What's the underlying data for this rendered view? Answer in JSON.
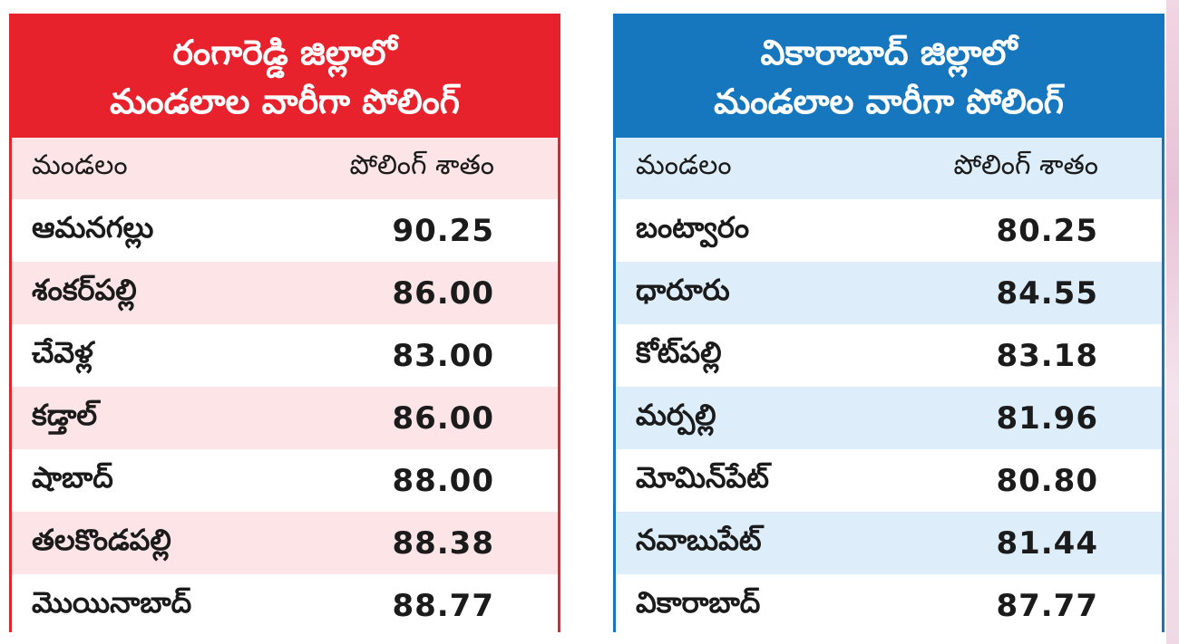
{
  "left_panel": {
    "title_line1": "రంగారెడ్డి జిల్లాలో",
    "title_line2": "మండలాల వారీగా పోలింగ్",
    "col_mandal": "మండలం",
    "col_percent": "పోలింగ్ శాతం",
    "rows": [
      {
        "name": "ఆమనగల్లు",
        "value": "90.25"
      },
      {
        "name": "శంకర్‌పల్లి",
        "value": "86.00"
      },
      {
        "name": "చేవెళ్ల",
        "value": "83.00"
      },
      {
        "name": "కడ్తాల్",
        "value": "86.00"
      },
      {
        "name": "షాబాద్",
        "value": "88.00"
      },
      {
        "name": "తలకొండపల్లి",
        "value": "88.38"
      },
      {
        "name": "మొయినాబాద్",
        "value": "88.77"
      }
    ],
    "color": "#e8222d"
  },
  "right_panel": {
    "title_line1": "వికారాబాద్ జిల్లాలో",
    "title_line2": "మండలాల వారీగా పోలింగ్",
    "col_mandal": "మండలం",
    "col_percent": "పోలింగ్ శాతం",
    "rows": [
      {
        "name": "బంట్వారం",
        "value": "80.25"
      },
      {
        "name": "ధారూరు",
        "value": "84.55"
      },
      {
        "name": "కోట్‌పల్లి",
        "value": "83.18"
      },
      {
        "name": "మర్పల్లి",
        "value": "81.96"
      },
      {
        "name": "మోమిన్‌పేట్",
        "value": "80.80"
      },
      {
        "name": "నవాబుపేట్",
        "value": "81.44"
      },
      {
        "name": "వికారాబాద్",
        "value": "87.77"
      }
    ],
    "color": "#1677bf"
  }
}
